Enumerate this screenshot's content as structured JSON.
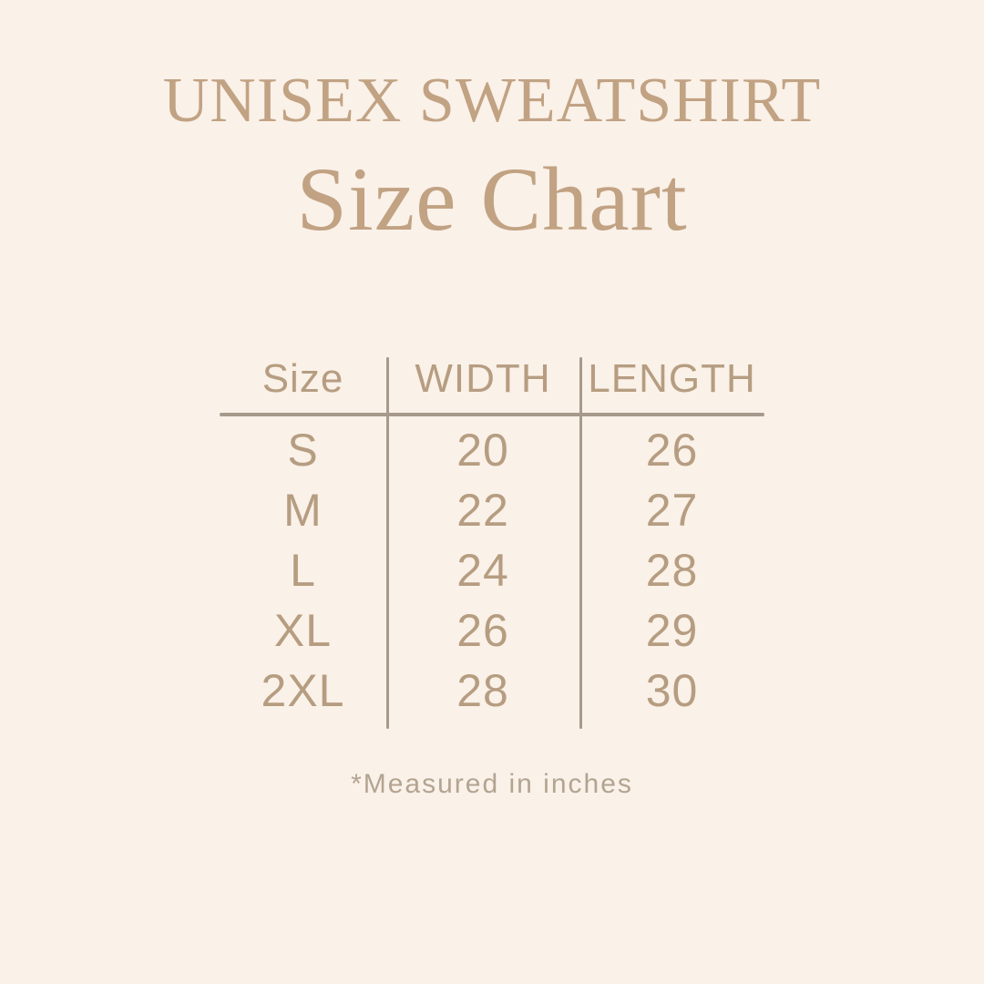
{
  "page": {
    "colors": {
      "bg": "#faf1e8",
      "accent": "#c1a283",
      "table_text": "#b69d81",
      "line": "#a79a8c",
      "footnote_text": "#b3a492"
    }
  },
  "header": {
    "title": "UNISEX SWEATSHIRT",
    "subtitle": "Size Chart"
  },
  "table": {
    "headers": [
      "Size",
      "WIDTH",
      "LENGTH"
    ],
    "rows": [
      {
        "size": "S",
        "width": "20",
        "length": "26"
      },
      {
        "size": "M",
        "width": "22",
        "length": "27"
      },
      {
        "size": "L",
        "width": "24",
        "length": "28"
      },
      {
        "size": "XL",
        "width": "26",
        "length": "29"
      },
      {
        "size": "2XL",
        "width": "28",
        "length": "30"
      }
    ]
  },
  "footnote": "*Measured in inches",
  "chart_data": {
    "type": "table",
    "title": "UNISEX SWEATSHIRT Size Chart",
    "columns": [
      "Size",
      "WIDTH",
      "LENGTH"
    ],
    "rows": [
      [
        "S",
        20,
        26
      ],
      [
        "M",
        22,
        27
      ],
      [
        "L",
        24,
        28
      ],
      [
        "XL",
        26,
        29
      ],
      [
        "2XL",
        28,
        30
      ]
    ],
    "units": "inches",
    "notes": "*Measured in inches"
  }
}
